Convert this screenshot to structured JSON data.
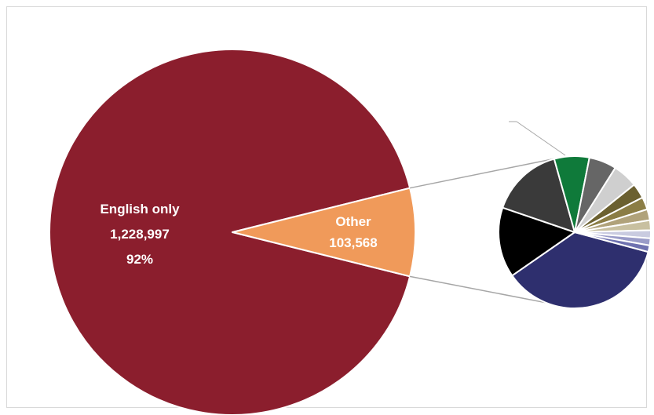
{
  "chart_data": {
    "type": "pie",
    "title": "",
    "main_slices": [
      {
        "name": "English only",
        "value": 1228997,
        "value_label": "1,228,997",
        "percent_label": "92%",
        "color": "#8b1e2d"
      },
      {
        "name": "Other",
        "value": 103568,
        "value_label": "103,568",
        "color": "#f09a5a"
      }
    ],
    "secondary_pie_of": "Other",
    "secondary_slices": [
      {
        "value": 34.0,
        "color": "#2e2f6e"
      },
      {
        "value": 14.0,
        "color": "#000000"
      },
      {
        "value": 14.5,
        "color": "#3a3a3a"
      },
      {
        "value": 7.0,
        "color": "#0f7a3a"
      },
      {
        "value": 5.5,
        "color": "#666666"
      },
      {
        "value": 5.0,
        "color": "#cfcfcf"
      },
      {
        "value": 3.0,
        "color": "#6b6030"
      },
      {
        "value": 2.5,
        "color": "#8b7d45"
      },
      {
        "value": 2.2,
        "color": "#b0a27a"
      },
      {
        "value": 2.0,
        "color": "#c8c0a0"
      },
      {
        "value": 1.6,
        "color": "#c9cbe0"
      },
      {
        "value": 1.4,
        "color": "#9a9cc8"
      },
      {
        "value": 1.3,
        "color": "#6f72b0"
      }
    ],
    "legend": "none"
  }
}
